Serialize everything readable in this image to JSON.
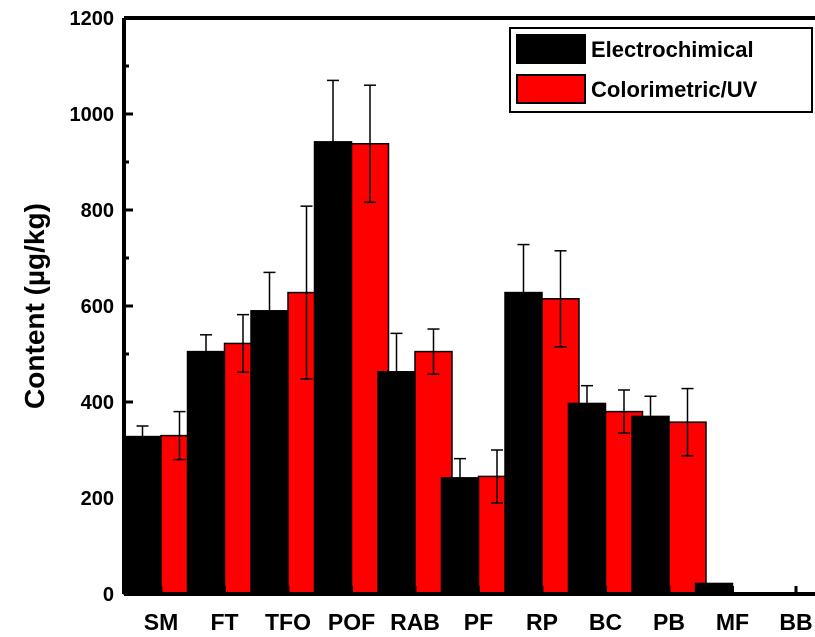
{
  "chart_data": {
    "type": "bar",
    "title": "",
    "xlabel": "",
    "ylabel": "Content (µg/kg)",
    "ylim": [
      0,
      1200
    ],
    "yticks": [
      0,
      200,
      400,
      600,
      800,
      1000,
      1200
    ],
    "ytick_labels": [
      "0",
      "200",
      "400",
      "600",
      "800",
      "1000",
      "1200"
    ],
    "grid": false,
    "legend_position": "top-right",
    "categories": [
      "SM",
      "FT",
      "TFO",
      "POF",
      "RAB",
      "PF",
      "RP",
      "BC",
      "PB",
      "MF",
      "BB"
    ],
    "series": [
      {
        "name": "Electrochimical",
        "color": "#000000",
        "values": [
          328,
          505,
          590,
          942,
          463,
          242,
          628,
          397,
          370,
          22,
          0
        ],
        "errors": [
          22,
          35,
          80,
          128,
          80,
          40,
          100,
          37,
          42,
          0,
          0
        ]
      },
      {
        "name": "Colorimetric/UV",
        "color": "#ff0000",
        "values": [
          330,
          522,
          628,
          938,
          505,
          245,
          615,
          380,
          358,
          0,
          0
        ],
        "errors": [
          50,
          60,
          180,
          122,
          47,
          55,
          100,
          45,
          70,
          0,
          0
        ]
      }
    ]
  }
}
